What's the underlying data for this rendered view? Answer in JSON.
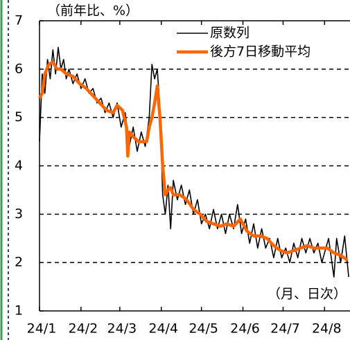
{
  "chart_data": {
    "type": "line",
    "title": "（前年比、%）",
    "x_unit": "（月、日次）",
    "xlim": [
      0,
      232
    ],
    "xticks": [
      {
        "value": 0,
        "label": "24/1"
      },
      {
        "value": 31,
        "label": "24/2"
      },
      {
        "value": 60,
        "label": "24/3"
      },
      {
        "value": 91,
        "label": "24/4"
      },
      {
        "value": 121,
        "label": "24/5"
      },
      {
        "value": 152,
        "label": "24/6"
      },
      {
        "value": 182,
        "label": "24/7"
      },
      {
        "value": 213,
        "label": "24/8"
      }
    ],
    "ylim": [
      1,
      7
    ],
    "yticks": [
      1,
      2,
      3,
      4,
      5,
      6,
      7
    ],
    "grid": true,
    "legend": "upper right",
    "series": [
      {
        "name": "原数列",
        "color": "#000000",
        "x": [
          0,
          2,
          4,
          6,
          8,
          10,
          12,
          14,
          16,
          18,
          20,
          22,
          25,
          28,
          31,
          34,
          37,
          40,
          43,
          46,
          49,
          52,
          55,
          58,
          61,
          64,
          67,
          70,
          73,
          76,
          79,
          82,
          84,
          86,
          88,
          90,
          92,
          94,
          96,
          98,
          100,
          103,
          106,
          109,
          112,
          115,
          118,
          121,
          124,
          127,
          130,
          133,
          136,
          139,
          142,
          145,
          148,
          151,
          154,
          157,
          160,
          163,
          166,
          169,
          172,
          175,
          178,
          181,
          184,
          187,
          190,
          193,
          196,
          199,
          202,
          205,
          208,
          211,
          214,
          216,
          218,
          220,
          222,
          225,
          228,
          231
        ],
        "values": [
          4.5,
          5.9,
          5.5,
          6.2,
          5.8,
          6.4,
          5.9,
          6.45,
          6.0,
          6.2,
          5.8,
          6.0,
          5.7,
          5.9,
          5.6,
          5.8,
          5.5,
          5.6,
          5.3,
          5.4,
          5.1,
          5.3,
          5.0,
          5.3,
          4.8,
          5.1,
          4.4,
          4.8,
          4.3,
          4.7,
          4.4,
          5.0,
          6.1,
          5.8,
          6.0,
          5.2,
          3.4,
          3.0,
          3.6,
          2.7,
          3.7,
          3.3,
          3.6,
          3.2,
          3.5,
          3.0,
          3.3,
          2.8,
          3.0,
          2.7,
          3.1,
          2.7,
          3.0,
          2.6,
          3.0,
          2.7,
          3.2,
          2.6,
          2.9,
          2.4,
          2.8,
          2.3,
          2.7,
          2.3,
          2.5,
          2.1,
          2.5,
          2.1,
          2.3,
          2.0,
          2.4,
          2.1,
          2.5,
          2.2,
          2.5,
          2.2,
          2.4,
          2.0,
          2.3,
          2.5,
          2.1,
          1.7,
          2.5,
          2.0,
          2.55,
          1.7
        ]
      },
      {
        "name": "後方7日移動平均",
        "color": "#ff6600",
        "x": [
          0,
          2,
          4,
          7,
          10,
          13,
          16,
          20,
          25,
          30,
          35,
          40,
          45,
          50,
          55,
          58,
          62,
          65,
          66,
          67,
          70,
          74,
          78,
          80,
          82,
          84,
          86,
          88,
          90,
          92,
          94,
          96,
          98,
          100,
          105,
          110,
          115,
          120,
          125,
          130,
          135,
          140,
          145,
          150,
          155,
          160,
          165,
          170,
          175,
          180,
          185,
          190,
          195,
          200,
          205,
          210,
          215,
          220,
          225,
          230
        ],
        "values": [
          5.4,
          5.5,
          5.9,
          6.1,
          6.15,
          6.0,
          6.0,
          5.9,
          5.85,
          5.7,
          5.6,
          5.45,
          5.3,
          5.15,
          5.1,
          5.25,
          5.15,
          4.8,
          4.2,
          4.7,
          4.6,
          4.5,
          4.5,
          4.5,
          4.8,
          5.0,
          5.3,
          5.65,
          5.0,
          4.0,
          3.4,
          3.5,
          3.55,
          3.4,
          3.4,
          3.3,
          3.1,
          3.0,
          2.85,
          2.8,
          2.75,
          2.8,
          2.75,
          2.9,
          2.65,
          2.55,
          2.55,
          2.5,
          2.35,
          2.25,
          2.2,
          2.25,
          2.3,
          2.35,
          2.3,
          2.3,
          2.3,
          2.2,
          2.15,
          2.05
        ]
      }
    ]
  }
}
